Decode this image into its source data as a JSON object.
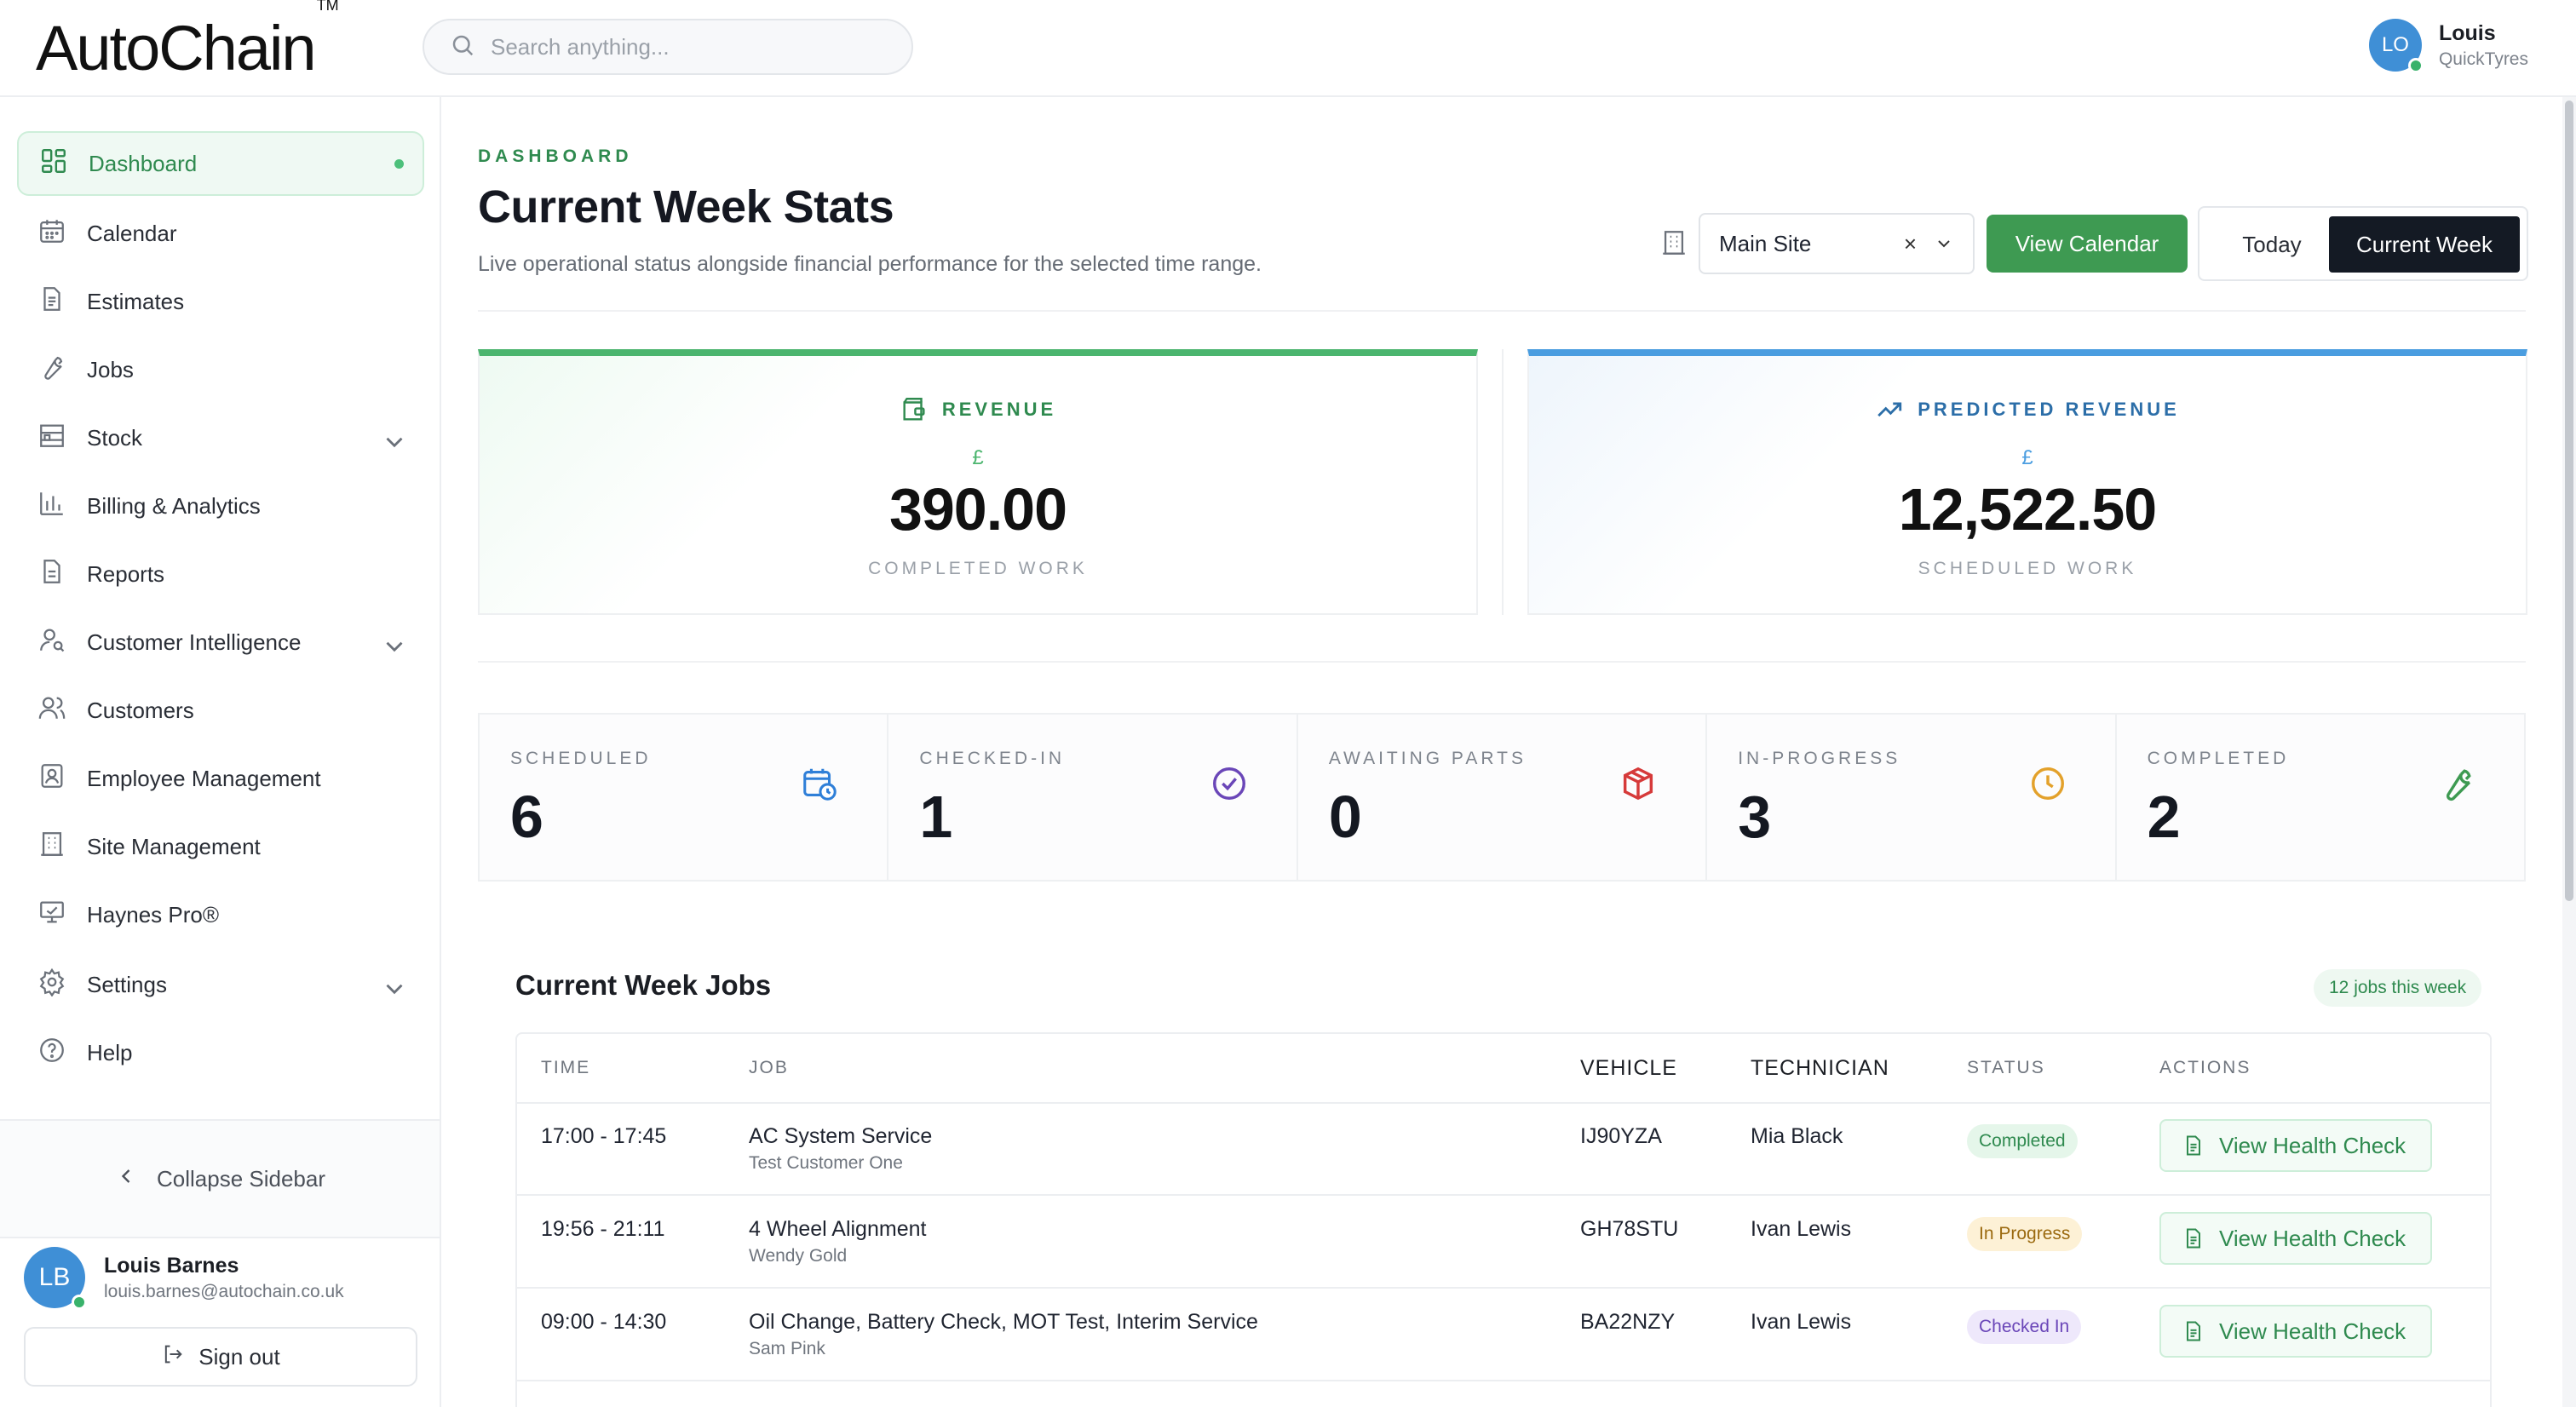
{
  "app": {
    "logo_text_bold": "Auto",
    "logo_text_light": "Chain",
    "logo_tm": "TM"
  },
  "search": {
    "placeholder": "Search anything..."
  },
  "top_user": {
    "initials": "LO",
    "name": "Louis",
    "org": "QuickTyres"
  },
  "sidebar": {
    "items": [
      {
        "label": "Dashboard",
        "icon": "dashboard-icon",
        "active": true
      },
      {
        "label": "Calendar",
        "icon": "calendar-icon"
      },
      {
        "label": "Estimates",
        "icon": "document-icon"
      },
      {
        "label": "Jobs",
        "icon": "wrench-icon"
      },
      {
        "label": "Stock",
        "icon": "shelves-icon",
        "expandable": true
      },
      {
        "label": "Billing & Analytics",
        "icon": "bar-chart-icon"
      },
      {
        "label": "Reports",
        "icon": "report-icon"
      },
      {
        "label": "Customer Intelligence",
        "icon": "user-search-icon",
        "expandable": true
      },
      {
        "label": "Customers",
        "icon": "users-icon"
      },
      {
        "label": "Employee Management",
        "icon": "id-card-icon"
      },
      {
        "label": "Site Management",
        "icon": "building-icon"
      },
      {
        "label": "Haynes Pro®",
        "icon": "monitor-icon"
      },
      {
        "label": "Settings",
        "icon": "gear-icon",
        "expandable": true
      },
      {
        "label": "Help",
        "icon": "help-icon"
      }
    ],
    "collapse_label": "Collapse Sidebar",
    "user": {
      "initials": "LB",
      "name": "Louis Barnes",
      "email": "louis.barnes@autochain.co.uk"
    },
    "signout_label": "Sign out"
  },
  "header": {
    "eyebrow": "DASHBOARD",
    "title": "Current Week Stats",
    "subtitle": "Live operational status alongside financial performance for the selected time range.",
    "site_select": "Main Site",
    "site_clear": "×",
    "view_calendar": "View Calendar",
    "range_today": "Today",
    "range_week": "Current Week"
  },
  "revenue": {
    "label": "REVENUE",
    "currency": "£",
    "amount": "390.00",
    "caption": "COMPLETED WORK"
  },
  "predicted": {
    "label": "PREDICTED REVENUE",
    "currency": "£",
    "amount": "12,522.50",
    "caption": "SCHEDULED WORK"
  },
  "stats": [
    {
      "label": "SCHEDULED",
      "value": "6",
      "icon": "calendar-clock-icon",
      "color": "#2f7fd8"
    },
    {
      "label": "CHECKED-IN",
      "value": "1",
      "icon": "check-circle-icon",
      "color": "#6a46b8"
    },
    {
      "label": "AWAITING PARTS",
      "value": "0",
      "icon": "package-icon",
      "color": "#d63a3a"
    },
    {
      "label": "IN-PROGRESS",
      "value": "3",
      "icon": "clock-icon",
      "color": "#e3a12b"
    },
    {
      "label": "COMPLETED",
      "value": "2",
      "icon": "wrench-icon",
      "color": "#3e9a52"
    }
  ],
  "jobs": {
    "title": "Current Week Jobs",
    "count_badge": "12 jobs this week",
    "columns": {
      "time": "TIME",
      "job": "JOB",
      "vehicle": "VEHICLE",
      "technician": "TECHNICIAN",
      "status": "STATUS",
      "actions": "ACTIONS"
    },
    "rows": [
      {
        "time": "17:00 - 17:45",
        "job": "AC System Service",
        "customer": "Test Customer One",
        "vehicle": "IJ90YZA",
        "technician": "Mia Black",
        "status": "Completed",
        "action": "View Health Check"
      },
      {
        "time": "19:56 - 21:11",
        "job": "4 Wheel Alignment",
        "customer": "Wendy Gold",
        "vehicle": "GH78STU",
        "technician": "Ivan Lewis",
        "status": "In Progress",
        "action": "View Health Check"
      },
      {
        "time": "09:00 - 14:30",
        "job": "Oil Change, Battery Check, MOT Test, Interim Service",
        "customer": "Sam Pink",
        "vehicle": "BA22NZY",
        "technician": "Ivan Lewis",
        "status": "Checked In",
        "action": "View Health Check"
      }
    ]
  }
}
